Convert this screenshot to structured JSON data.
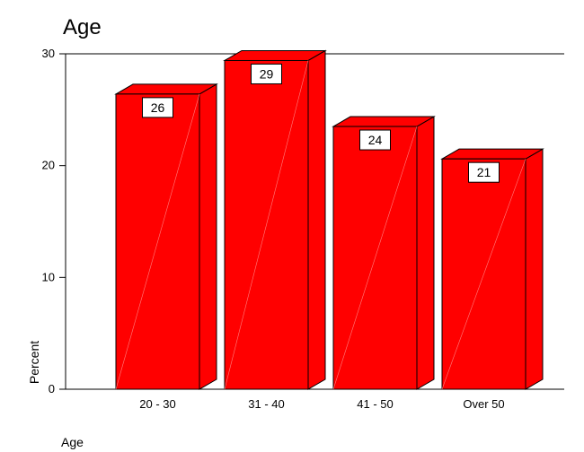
{
  "chart_data": {
    "type": "bar",
    "title": "Age",
    "xlabel": "Age",
    "ylabel": "Percent",
    "categories": [
      "20 - 30",
      "31 - 40",
      "41 - 50",
      "Over 50"
    ],
    "values": [
      26.4,
      29.4,
      23.5,
      20.6
    ],
    "data_labels": [
      "26",
      "29",
      "24",
      "21"
    ],
    "ylim": [
      0,
      30
    ],
    "yticks": [
      0,
      10,
      20,
      30
    ],
    "bar_color": "#ff0000",
    "three_d": true,
    "grid": false
  }
}
